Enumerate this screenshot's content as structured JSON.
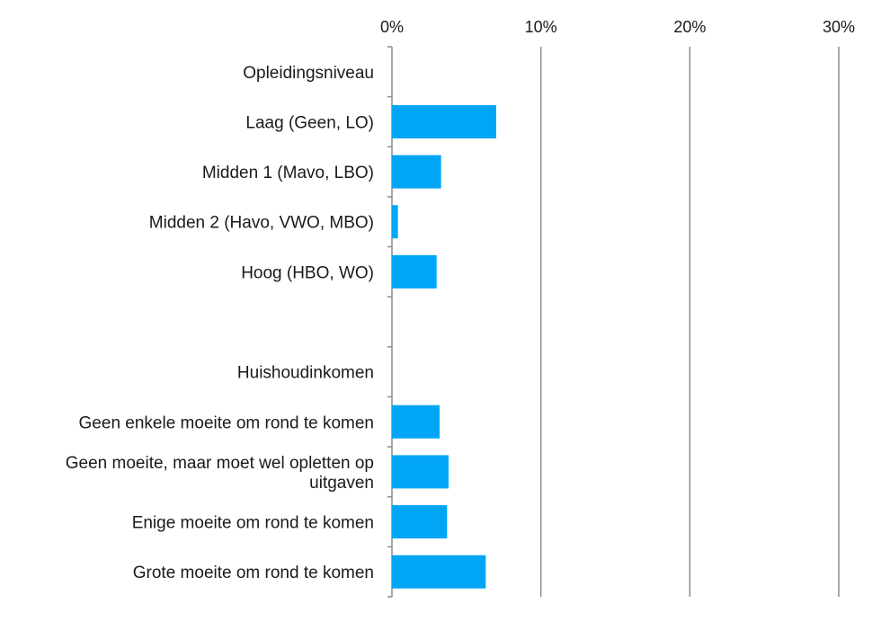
{
  "chart_data": {
    "type": "bar",
    "orientation": "horizontal",
    "categories": [
      "Opleidingsniveau",
      "Laag (Geen, LO)",
      "Midden 1 (Mavo, LBO)",
      "Midden 2 (Havo, VWO, MBO)",
      "Hoog (HBO, WO)",
      "",
      "Huishoudinkomen",
      "Geen enkele moeite om rond te komen",
      "Geen moeite, maar moet wel opletten op uitgaven",
      "Enige moeite om rond te komen",
      "Grote moeite om rond te komen"
    ],
    "values": [
      null,
      7.0,
      3.3,
      0.4,
      3.0,
      null,
      null,
      3.2,
      3.8,
      3.7,
      6.3
    ],
    "xlim": [
      0,
      30
    ],
    "xticks": [
      0,
      10,
      20,
      30
    ],
    "tick_labels": [
      "0%",
      "10%",
      "20%",
      "30%"
    ],
    "x_axis_position": "top",
    "grid": true,
    "bar_color": "#00a6f5",
    "grid_color": "#8c8c8c"
  }
}
